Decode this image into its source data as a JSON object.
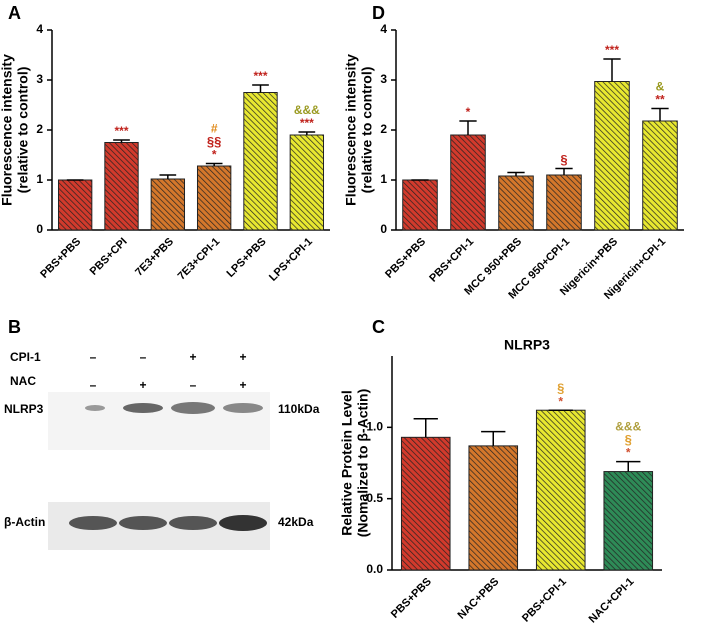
{
  "chart_data": [
    {
      "panel": "A",
      "type": "bar",
      "y_label": [
        "Fluorescence intensity",
        "(relative to control)"
      ],
      "categories": [
        "PBS+PBS",
        "PBS+CPI",
        "7E3+PBS",
        "7E3+CPI-1",
        "LPS+PBS",
        "LPS+CPI-1"
      ],
      "values": [
        1.0,
        1.75,
        1.02,
        1.28,
        2.75,
        1.9
      ],
      "errors": [
        0,
        0.05,
        0.08,
        0.05,
        0.15,
        0.06
      ],
      "colors": [
        "#d23a2c",
        "#d23a2c",
        "#d4772b",
        "#d4772b",
        "#e8e830",
        "#e8e830"
      ],
      "annotations": [
        [],
        [
          {
            "text": "***",
            "color": "#c0221c"
          }
        ],
        [],
        [
          {
            "text": "#",
            "color": "#e08a1a"
          },
          {
            "text": "§§",
            "color": "#c0221c"
          },
          {
            "text": "*",
            "color": "#c0221c"
          }
        ],
        [
          {
            "text": "***",
            "color": "#c0221c"
          }
        ],
        [
          {
            "text": "&&&",
            "color": "#9a9a20"
          },
          {
            "text": "***",
            "color": "#c0221c"
          }
        ]
      ],
      "ylim": [
        0,
        4
      ],
      "yticks": [
        0,
        1,
        2,
        3,
        4
      ]
    },
    {
      "panel": "D",
      "type": "bar",
      "y_label": [
        "Fluorescence intensity",
        "(relative to control)"
      ],
      "categories": [
        "PBS+PBS",
        "PBS+CPI-1",
        "MCC 950+PBS",
        "MCC 950+CPI-1",
        "Nigericin+PBS",
        "Nigericin+CPI-1"
      ],
      "values": [
        1.0,
        1.9,
        1.08,
        1.1,
        2.97,
        2.18
      ],
      "errors": [
        0,
        0.28,
        0.07,
        0.13,
        0.45,
        0.25
      ],
      "colors": [
        "#d23a2c",
        "#d23a2c",
        "#d4772b",
        "#d4772b",
        "#e8e830",
        "#e8e830"
      ],
      "annotations": [
        [],
        [
          {
            "text": "*",
            "color": "#c0221c"
          }
        ],
        [],
        [
          {
            "text": "§",
            "color": "#c0221c"
          }
        ],
        [
          {
            "text": "***",
            "color": "#c0221c"
          }
        ],
        [
          {
            "text": "&",
            "color": "#9a9a20"
          },
          {
            "text": "**",
            "color": "#c0221c"
          }
        ]
      ],
      "ylim": [
        0,
        4
      ],
      "yticks": [
        0,
        1,
        2,
        3,
        4
      ]
    },
    {
      "panel": "C",
      "type": "bar",
      "title": "NLRP3",
      "y_label": [
        "Relative Protein Level",
        "(Nomalized to β-Actin)"
      ],
      "categories": [
        "PBS+PBS",
        "NAC+PBS",
        "PBS+CPI-1",
        "NAC+CPI-1"
      ],
      "values": [
        0.93,
        0.87,
        1.12,
        0.69
      ],
      "errors": [
        0.13,
        0.1,
        0,
        0.07
      ],
      "colors": [
        "#d23a2c",
        "#d4772b",
        "#e8e830",
        "#2e8b57"
      ],
      "annotations": [
        [],
        [],
        [
          {
            "text": "§",
            "color": "#e0a030"
          },
          {
            "text": "*",
            "color": "#d05030"
          }
        ],
        [
          {
            "text": "&&&",
            "color": "#b0a040"
          },
          {
            "text": "§",
            "color": "#e0a030"
          },
          {
            "text": "*",
            "color": "#d05030"
          }
        ]
      ],
      "ylim": [
        0,
        1.5
      ],
      "yticks": [
        {
          "value": 0,
          "label": "0.0"
        },
        {
          "value": 0.5,
          "label": "0.5"
        },
        {
          "value": 1,
          "label": "1.0"
        }
      ]
    }
  ],
  "blot": {
    "panel": "B",
    "rows": [
      {
        "label": "CPI-1",
        "signs": [
          "–",
          "–",
          "+",
          "+"
        ]
      },
      {
        "label": "NAC",
        "signs": [
          "–",
          "+",
          "–",
          "+"
        ]
      }
    ],
    "bands": [
      {
        "label": "NLRP3",
        "size": "110kDa"
      },
      {
        "label": "β-Actin",
        "size": "42kDa"
      }
    ]
  }
}
